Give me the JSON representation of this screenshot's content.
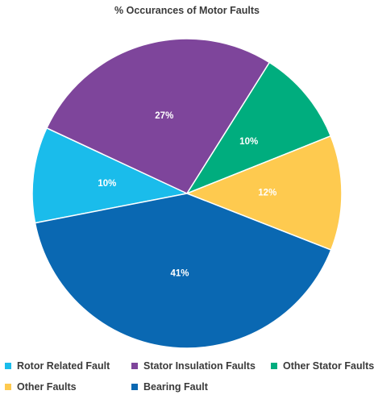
{
  "chart_data": {
    "type": "pie",
    "title": "% Occurances of Motor Faults",
    "slices": [
      {
        "name": "Rotor Related Fault",
        "value": 10,
        "label": "10%",
        "color": "#1ABCEB"
      },
      {
        "name": "Stator Insulation Faults",
        "value": 27,
        "label": "27%",
        "color": "#7E459B"
      },
      {
        "name": "Other Stator Faults",
        "value": 10,
        "label": "10%",
        "color": "#00AD7E"
      },
      {
        "name": "Other Faults",
        "value": 12,
        "label": "12%",
        "color": "#FECA4F"
      },
      {
        "name": "Bearing Fault",
        "value": 41,
        "label": "41%",
        "color": "#0A68B2"
      }
    ],
    "legend_position": "bottom"
  }
}
